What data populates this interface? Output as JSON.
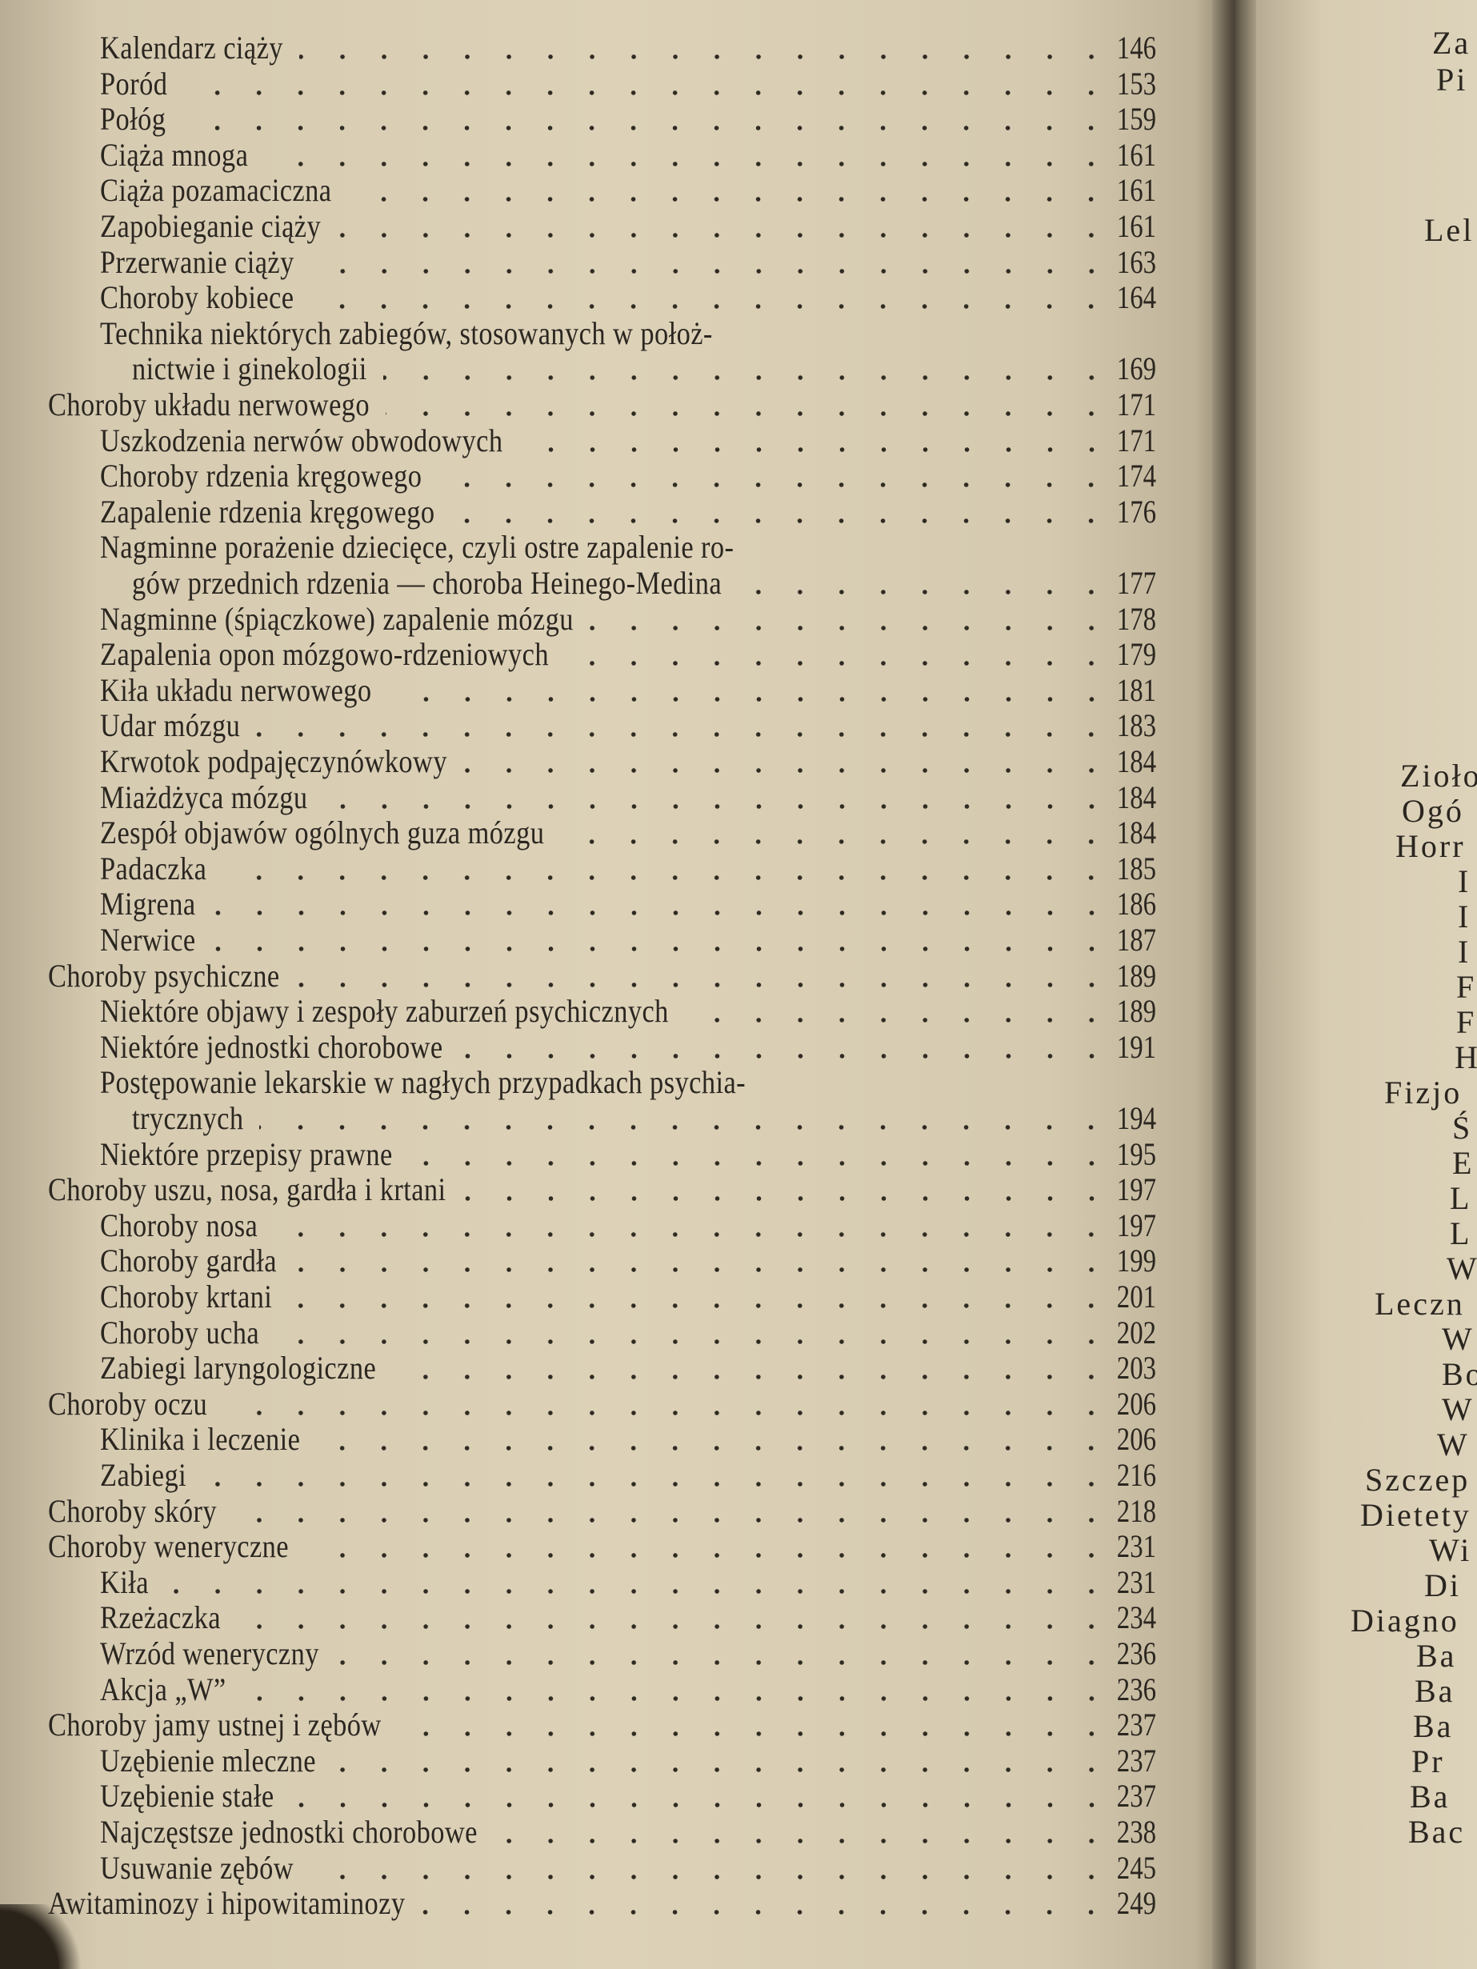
{
  "toc": [
    {
      "text": "Kalendarz ciąży",
      "page": "146",
      "level": 1
    },
    {
      "text": "Poród",
      "page": "153",
      "level": 1
    },
    {
      "text": "Połóg",
      "page": "159",
      "level": 1
    },
    {
      "text": "Ciąża mnoga",
      "page": "161",
      "level": 1
    },
    {
      "text": "Ciąża pozamaciczna",
      "page": "161",
      "level": 1
    },
    {
      "text": "Zapobieganie ciąży",
      "page": "161",
      "level": 1
    },
    {
      "text": "Przerwanie ciąży",
      "page": "163",
      "level": 1
    },
    {
      "text": "Choroby kobiece",
      "page": "164",
      "level": 1
    },
    {
      "text": "Technika niektórych zabiegów, stosowanych w położ-",
      "page": "",
      "level": 1
    },
    {
      "text": "nictwie i ginekologii",
      "page": "169",
      "level": 2
    },
    {
      "text": "Choroby układu nerwowego",
      "page": "171",
      "level": 0
    },
    {
      "text": "Uszkodzenia nerwów obwodowych",
      "page": "171",
      "level": 1
    },
    {
      "text": "Choroby rdzenia kręgowego",
      "page": "174",
      "level": 1
    },
    {
      "text": "Zapalenie rdzenia kręgowego",
      "page": "176",
      "level": 1
    },
    {
      "text": "Nagminne porażenie dziecięce, czyli ostre zapalenie ro-",
      "page": "",
      "level": 1
    },
    {
      "text": "gów przednich rdzenia — choroba Heinego-Medina",
      "page": "177",
      "level": 2
    },
    {
      "text": "Nagminne (śpiączkowe) zapalenie mózgu",
      "page": "178",
      "level": 1
    },
    {
      "text": "Zapalenia opon mózgowo-rdzeniowych",
      "page": "179",
      "level": 1
    },
    {
      "text": "Kiła układu nerwowego",
      "page": "181",
      "level": 1
    },
    {
      "text": "Udar mózgu",
      "page": "183",
      "level": 1
    },
    {
      "text": "Krwotok podpajęczynówkowy",
      "page": "184",
      "level": 1
    },
    {
      "text": "Miażdżyca mózgu",
      "page": "184",
      "level": 1
    },
    {
      "text": "Zespół objawów ogólnych guza mózgu",
      "page": "184",
      "level": 1
    },
    {
      "text": "Padaczka",
      "page": "185",
      "level": 1
    },
    {
      "text": "Migrena",
      "page": "186",
      "level": 1
    },
    {
      "text": "Nerwice",
      "page": "187",
      "level": 1
    },
    {
      "text": "Choroby psychiczne",
      "page": "189",
      "level": 0
    },
    {
      "text": "Niektóre objawy i zespoły zaburzeń psychicznych",
      "page": "189",
      "level": 1
    },
    {
      "text": "Niektóre jednostki chorobowe",
      "page": "191",
      "level": 1
    },
    {
      "text": "Postępowanie lekarskie w nagłych przypadkach psychia-",
      "page": "",
      "level": 1
    },
    {
      "text": "trycznych",
      "page": "194",
      "level": 2
    },
    {
      "text": "Niektóre przepisy prawne",
      "page": "195",
      "level": 1
    },
    {
      "text": "Choroby uszu, nosa, gardła i krtani",
      "page": "197",
      "level": 0
    },
    {
      "text": "Choroby nosa",
      "page": "197",
      "level": 1
    },
    {
      "text": "Choroby gardła",
      "page": "199",
      "level": 1
    },
    {
      "text": "Choroby krtani",
      "page": "201",
      "level": 1
    },
    {
      "text": "Choroby ucha",
      "page": "202",
      "level": 1
    },
    {
      "text": "Zabiegi laryngologiczne",
      "page": "203",
      "level": 1
    },
    {
      "text": "Choroby oczu",
      "page": "206",
      "level": 0
    },
    {
      "text": "Klinika i leczenie",
      "page": "206",
      "level": 1
    },
    {
      "text": "Zabiegi",
      "page": "216",
      "level": 1
    },
    {
      "text": "Choroby skóry",
      "page": "218",
      "level": 0
    },
    {
      "text": "Choroby weneryczne",
      "page": "231",
      "level": 0
    },
    {
      "text": "Kiła",
      "page": "231",
      "level": 1
    },
    {
      "text": "Rzeżaczka",
      "page": "234",
      "level": 1
    },
    {
      "text": "Wrzód weneryczny",
      "page": "236",
      "level": 1
    },
    {
      "text": "Akcja „W”",
      "page": "236",
      "level": 1
    },
    {
      "text": "Choroby jamy ustnej i zębów",
      "page": "237",
      "level": 0
    },
    {
      "text": "Uzębienie mleczne",
      "page": "237",
      "level": 1
    },
    {
      "text": "Uzębienie stałe",
      "page": "237",
      "level": 1
    },
    {
      "text": "Najczęstsze jednostki chorobowe",
      "page": "238",
      "level": 1
    },
    {
      "text": "Usuwanie zębów",
      "page": "245",
      "level": 1
    },
    {
      "text": "Awitaminozy i hipowitaminozy",
      "page": "249",
      "level": 0
    }
  ],
  "right_page_fragments": [
    "Za",
    "Pi",
    "Lel",
    "Zioło",
    "Ogó",
    "Horr",
    "I",
    "I",
    "I",
    "F",
    "F",
    "H",
    "Fizjo",
    "Ś",
    "E",
    "L",
    "L",
    "W",
    "Leczn",
    "W",
    "Bo",
    "W",
    "W",
    "Szczep",
    "Dietety",
    "Wi",
    "Di",
    "Diagno",
    "Ba",
    "Ba",
    "Ba",
    "Pr",
    "Ba",
    "Bac"
  ]
}
